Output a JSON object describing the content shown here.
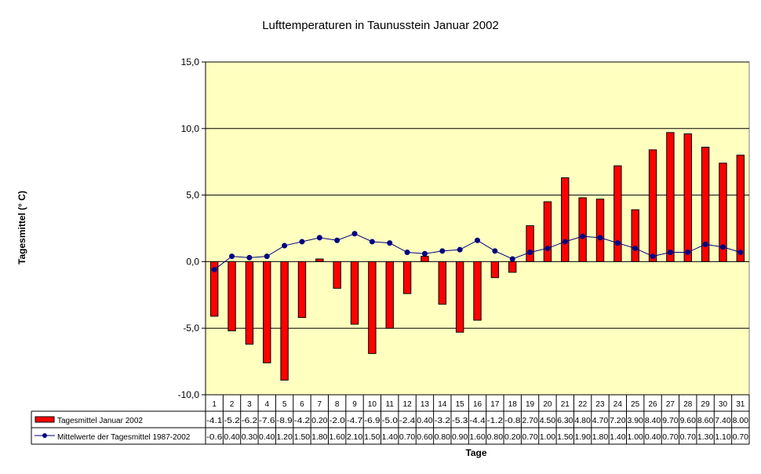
{
  "chart_data": {
    "type": "bar",
    "title": "Lufttemperaturen in Taunusstein Januar 2002",
    "xlabel": "Tage",
    "ylabel": "Tagesmittel (° C)",
    "ylim": [
      -10,
      15
    ],
    "yticks": [
      "15,0",
      "10,0",
      "5,0",
      "0,0",
      "-5,0",
      "-10,0"
    ],
    "ytick_values": [
      15,
      10,
      5,
      0,
      -5,
      -10
    ],
    "grid": true,
    "legend_position": "bottom-table",
    "categories": [
      "1",
      "2",
      "3",
      "4",
      "5",
      "6",
      "7",
      "8",
      "9",
      "10",
      "11",
      "12",
      "13",
      "14",
      "15",
      "16",
      "17",
      "18",
      "19",
      "20",
      "21",
      "22",
      "23",
      "24",
      "25",
      "26",
      "27",
      "28",
      "29",
      "30",
      "31"
    ],
    "series": [
      {
        "name": "Tagesmittel Januar 2002",
        "kind": "bar",
        "color": "#ff0000",
        "values": [
          -4.1,
          -5.2,
          -6.2,
          -7.6,
          -8.9,
          -4.2,
          0.2,
          -2.0,
          -4.7,
          -6.9,
          -5.0,
          -2.4,
          0.4,
          -3.2,
          -5.3,
          -4.4,
          -1.2,
          -0.8,
          2.7,
          4.5,
          6.3,
          4.8,
          4.7,
          7.2,
          3.9,
          8.4,
          9.7,
          9.6,
          8.6,
          7.4,
          8.0
        ],
        "labels": [
          "-4.1",
          "-5.2",
          "-6.2",
          "-7.6",
          "-8.9",
          "-4.2",
          "0.20",
          "-2.0",
          "-4.7",
          "-6.9",
          "-5.0",
          "-2.4",
          "0.40",
          "-3.2",
          "-5.3",
          "-4.4",
          "-1.2",
          "-0.8",
          "2.70",
          "4.50",
          "6.30",
          "4.80",
          "4.70",
          "7.20",
          "3.90",
          "8.40",
          "9.70",
          "9.60",
          "8.60",
          "7.40",
          "8.00"
        ]
      },
      {
        "name": "Mittelwerte der Tagesmittel 1987-2002",
        "kind": "line",
        "color": "#000080",
        "values": [
          -0.6,
          0.4,
          0.3,
          0.4,
          1.2,
          1.5,
          1.8,
          1.6,
          2.1,
          1.5,
          1.4,
          0.7,
          0.6,
          0.8,
          0.9,
          1.6,
          0.8,
          0.2,
          0.7,
          1.0,
          1.5,
          1.9,
          1.8,
          1.4,
          1.0,
          0.4,
          0.7,
          0.7,
          1.3,
          1.1,
          0.7
        ],
        "labels": [
          "-0.6",
          "0.40",
          "0.30",
          "0.40",
          "1.20",
          "1.50",
          "1.80",
          "1.60",
          "2.10",
          "1.50",
          "1.40",
          "0.70",
          "0.60",
          "0.80",
          "0.90",
          "1.60",
          "0.80",
          "0.20",
          "0.70",
          "1.00",
          "1.50",
          "1.90",
          "1.80",
          "1.40",
          "1.00",
          "0.40",
          "0.70",
          "0.70",
          "1.30",
          "1.10",
          "0.70"
        ]
      }
    ],
    "colors": {
      "plot_background": "#ffffc0",
      "gridline": "#000000",
      "bar_edge": "#000000",
      "line": "#000080",
      "marker": "#000080"
    }
  }
}
